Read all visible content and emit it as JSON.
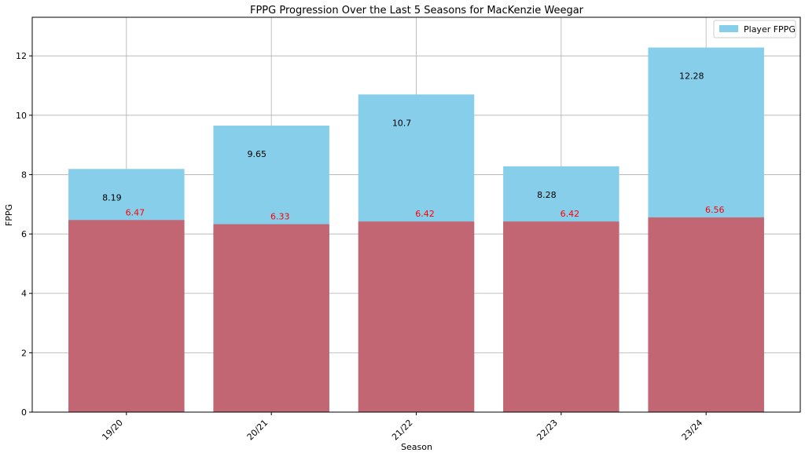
{
  "chart_data": {
    "type": "bar",
    "title": "FPPG Progression Over the Last 5 Seasons for MacKenzie Weegar",
    "xlabel": "Season",
    "ylabel": "FPPG",
    "categories": [
      "19/20",
      "20/21",
      "21/22",
      "22/23",
      "23/24"
    ],
    "series": [
      {
        "name": "Player FPPG",
        "values": [
          8.19,
          9.65,
          10.7,
          8.28,
          12.28
        ],
        "color": "#87CEEB",
        "label_color": "#000000"
      },
      {
        "values": [
          6.47,
          6.33,
          6.42,
          6.42,
          6.56
        ],
        "color": "#C16672",
        "label_color": "#ff0000"
      }
    ],
    "ylim": [
      0,
      13.3
    ],
    "yticks": [
      0,
      2,
      4,
      6,
      8,
      10,
      12
    ],
    "grid": true,
    "legend_position": "top-right"
  }
}
